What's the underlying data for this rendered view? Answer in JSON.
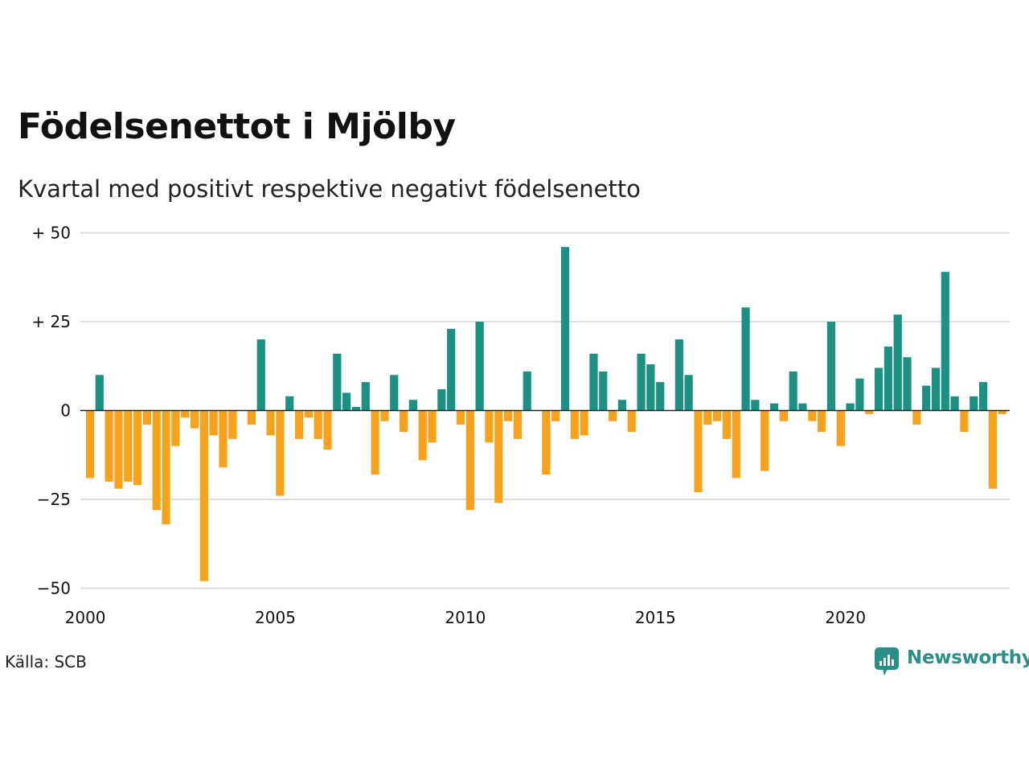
{
  "chart_data": {
    "type": "bar",
    "title": "Födelsenettot i Mjölby",
    "subtitle": "Kvartal med positivt respektive negativt födelsenetto",
    "source": "Källa: SCB",
    "brand": "Newsworthy",
    "start_year": 2000,
    "x_ticks": [
      {
        "value": 2000,
        "label": "2000"
      },
      {
        "value": 2005,
        "label": "2005"
      },
      {
        "value": 2010,
        "label": "2010"
      },
      {
        "value": 2015,
        "label": "2015"
      },
      {
        "value": 2020,
        "label": "2020"
      }
    ],
    "y_ticks": [
      {
        "value": 50,
        "label": "+ 50"
      },
      {
        "value": 25,
        "label": "+ 25"
      },
      {
        "value": 0,
        "label": "0"
      },
      {
        "value": -25,
        "label": "−25"
      },
      {
        "value": -50,
        "label": "−50"
      }
    ],
    "ylim": [
      -50,
      50
    ],
    "grid": true,
    "colors": {
      "positive": "#1b9083",
      "negative": "#f7a11d",
      "grid": "#dddddd",
      "zero_line": "#222222"
    },
    "values": [
      -19,
      10,
      -20,
      -22,
      -20,
      -21,
      -4,
      -28,
      -32,
      -10,
      -2,
      -5,
      -48,
      -7,
      -16,
      -8,
      0,
      -4,
      20,
      -7,
      -24,
      4,
      -8,
      -2,
      -8,
      -11,
      16,
      5,
      1,
      8,
      -18,
      -3,
      10,
      -6,
      3,
      -14,
      -9,
      6,
      23,
      -4,
      -28,
      25,
      -9,
      -26,
      -3,
      -8,
      11,
      0,
      -18,
      -3,
      46,
      -8,
      -7,
      16,
      11,
      -3,
      3,
      -6,
      16,
      13,
      8,
      0,
      20,
      10,
      -23,
      -4,
      -3,
      -8,
      -19,
      29,
      3,
      -17,
      2,
      -3,
      11,
      2,
      -3,
      -6,
      25,
      -10,
      2,
      9,
      -1,
      12,
      18,
      27,
      15,
      -4,
      7,
      12,
      39,
      4,
      -6,
      4,
      8,
      -22,
      -1
    ]
  }
}
